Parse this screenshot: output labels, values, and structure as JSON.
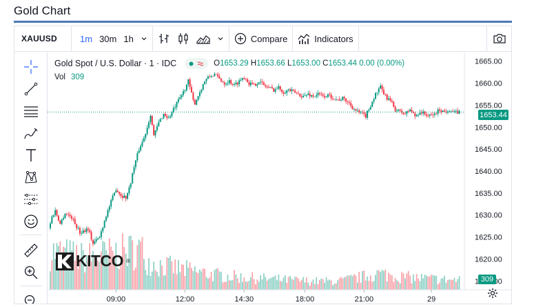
{
  "page": {
    "title": "Gold Chart"
  },
  "toolbar": {
    "symbol": "XAUUSD",
    "intervals": [
      "1m",
      "30m",
      "1h"
    ],
    "active_interval": "1m",
    "compare_label": "Compare",
    "indicators_label": "Indicators"
  },
  "legend": {
    "symbol_desc": "Gold Spot / U.S. Dollar",
    "interval": "1",
    "source": "IDC",
    "open_k": "O",
    "open": "1653.29",
    "high_k": "H",
    "high": "1653.66",
    "low_k": "L",
    "low": "1653.00",
    "close_k": "C",
    "close": "1653.44",
    "change": "0.00 (0.00%)",
    "vol_label": "Vol",
    "vol_value": "309"
  },
  "watermark": {
    "brand": "KITCO",
    "mark": "®"
  },
  "colors": {
    "up": "#089981",
    "down": "#f23645",
    "accent": "#2962ff",
    "title_rule": "#4a78b5"
  },
  "chart_data": {
    "type": "candlestick",
    "y_ticks": [
      "1665.00",
      "1660.00",
      "1655.00",
      "1650.00",
      "1645.00",
      "1640.00",
      "1635.00",
      "1630.00",
      "1625.00",
      "1620.00",
      "1615.00"
    ],
    "y_range": [
      1613,
      1667
    ],
    "x_ticks": [
      "09:00",
      "12:00",
      "14:30",
      "18:00",
      "21:00",
      "29"
    ],
    "last_price": "1653.44",
    "last_volume": "309",
    "price_path": [
      [
        0,
        1627
      ],
      [
        2,
        1629.5
      ],
      [
        4,
        1631
      ],
      [
        7,
        1628
      ],
      [
        10,
        1630.5
      ],
      [
        14,
        1629.5
      ],
      [
        19,
        1626
      ],
      [
        24,
        1627
      ],
      [
        27,
        1623.5
      ],
      [
        31,
        1625
      ],
      [
        35,
        1630
      ],
      [
        38,
        1633
      ],
      [
        41,
        1636
      ],
      [
        44,
        1634.5
      ],
      [
        47,
        1634
      ],
      [
        49,
        1636
      ],
      [
        52,
        1641
      ],
      [
        55,
        1645
      ],
      [
        58,
        1647.5
      ],
      [
        60,
        1650
      ],
      [
        62,
        1653
      ],
      [
        64,
        1648
      ],
      [
        67,
        1651
      ],
      [
        70,
        1653
      ],
      [
        73,
        1652
      ],
      [
        76,
        1654
      ],
      [
        79,
        1656
      ],
      [
        82,
        1658
      ],
      [
        85,
        1660.5
      ],
      [
        88,
        1656
      ],
      [
        89,
        1655.5
      ],
      [
        92,
        1658
      ],
      [
        95,
        1660.5
      ],
      [
        98,
        1661.5
      ],
      [
        101,
        1662
      ],
      [
        104,
        1661
      ],
      [
        107,
        1660
      ],
      [
        110,
        1660.5
      ],
      [
        113,
        1659.5
      ],
      [
        116,
        1660.5
      ],
      [
        119,
        1661.5
      ],
      [
        122,
        1660
      ],
      [
        125,
        1659.5
      ],
      [
        128,
        1660.5
      ],
      [
        131,
        1659.5
      ],
      [
        134,
        1659
      ],
      [
        137,
        1658.5
      ],
      [
        140,
        1659
      ],
      [
        143,
        1658
      ],
      [
        146,
        1658.5
      ],
      [
        149,
        1658
      ],
      [
        152,
        1657.5
      ],
      [
        155,
        1657
      ],
      [
        158,
        1657.5
      ],
      [
        161,
        1657
      ],
      [
        164,
        1657.5
      ],
      [
        167,
        1657
      ],
      [
        170,
        1657.2
      ],
      [
        173,
        1656.8
      ],
      [
        176,
        1656.2
      ],
      [
        179,
        1656.5
      ],
      [
        182,
        1655.8
      ],
      [
        185,
        1654.5
      ],
      [
        188,
        1653.5
      ],
      [
        191,
        1653
      ],
      [
        193,
        1652.5
      ],
      [
        196,
        1655
      ],
      [
        199,
        1657.5
      ],
      [
        202,
        1659
      ],
      [
        205,
        1657
      ],
      [
        208,
        1656
      ],
      [
        211,
        1654
      ],
      [
        214,
        1653.5
      ],
      [
        217,
        1653
      ],
      [
        220,
        1654
      ],
      [
        223,
        1652.5
      ],
      [
        226,
        1653.5
      ],
      [
        229,
        1653
      ],
      [
        232,
        1652.5
      ],
      [
        235,
        1653
      ],
      [
        238,
        1654
      ],
      [
        241,
        1653.5
      ],
      [
        244,
        1654
      ],
      [
        247,
        1653.3
      ],
      [
        250,
        1653.44
      ]
    ],
    "volume_profile": [
      [
        0,
        0.9
      ],
      [
        20,
        0.75
      ],
      [
        40,
        0.85
      ],
      [
        55,
        0.95
      ],
      [
        60,
        0.65
      ],
      [
        70,
        0.55
      ],
      [
        85,
        0.45
      ],
      [
        100,
        0.35
      ],
      [
        120,
        0.28
      ],
      [
        140,
        0.24
      ],
      [
        160,
        0.2
      ],
      [
        175,
        0.2
      ],
      [
        190,
        0.3
      ],
      [
        200,
        0.38
      ],
      [
        215,
        0.3
      ],
      [
        230,
        0.26
      ],
      [
        250,
        0.22
      ]
    ]
  }
}
